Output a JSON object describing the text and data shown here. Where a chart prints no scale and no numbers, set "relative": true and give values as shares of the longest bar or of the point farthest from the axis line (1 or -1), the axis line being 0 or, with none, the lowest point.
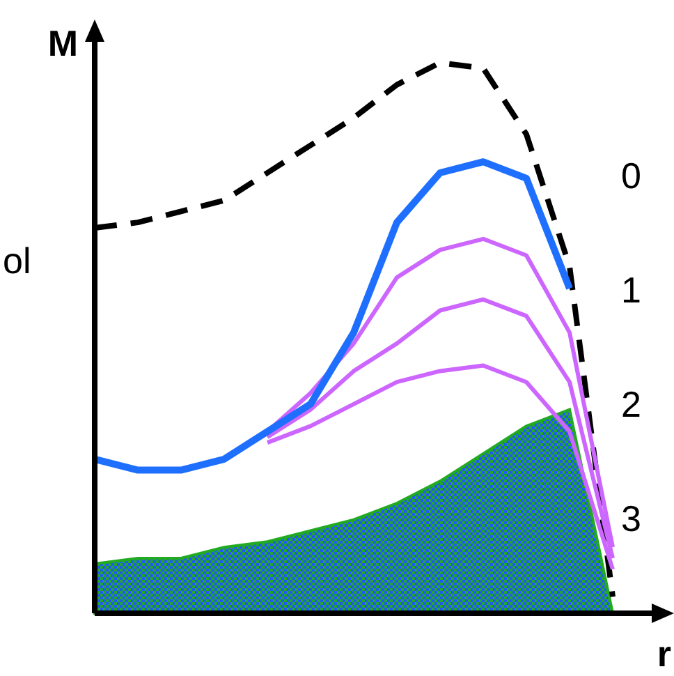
{
  "chart_data": {
    "type": "line",
    "relative": true,
    "ylabel": "M",
    "xlabel": "r",
    "categories": [
      null,
      null,
      null,
      null,
      null,
      null,
      null,
      null,
      null,
      null,
      null,
      null,
      null
    ],
    "annotations": [
      "ol",
      "0",
      "1",
      "2",
      "3"
    ],
    "series": [
      {
        "type": "area",
        "color": "#22aa22",
        "values": [
          0.09,
          0.1,
          0.1,
          0.12,
          0.13,
          0.15,
          0.17,
          0.2,
          0.24,
          0.29,
          0.34,
          0.37,
          0
        ]
      },
      {
        "color": "#000000",
        "line_style": "dashed",
        "values": [
          0.7,
          0.71,
          0.73,
          0.75,
          0.8,
          0.85,
          0.9,
          0.96,
          1.0,
          0.99,
          0.87,
          0.63,
          0.03
        ]
      },
      {
        "color": "#cc66ff",
        "values": [
          null,
          null,
          null,
          null,
          0.33,
          0.4,
          0.49,
          0.61,
          0.66,
          0.68,
          0.65,
          0.51,
          0.12
        ]
      },
      {
        "color": "#cc66ff",
        "values": [
          null,
          null,
          null,
          null,
          0.32,
          0.37,
          0.44,
          0.49,
          0.55,
          0.57,
          0.54,
          0.42,
          0.1
        ]
      },
      {
        "color": "#cc66ff",
        "values": [
          null,
          null,
          null,
          null,
          0.31,
          0.34,
          0.38,
          0.42,
          0.44,
          0.45,
          0.42,
          0.33,
          0.08
        ]
      },
      {
        "color": "#1f6fff",
        "values": [
          0.28,
          0.26,
          0.26,
          0.28,
          0.33,
          0.38,
          0.51,
          0.71,
          0.8,
          0.82,
          0.79,
          0.59,
          null
        ]
      }
    ]
  }
}
